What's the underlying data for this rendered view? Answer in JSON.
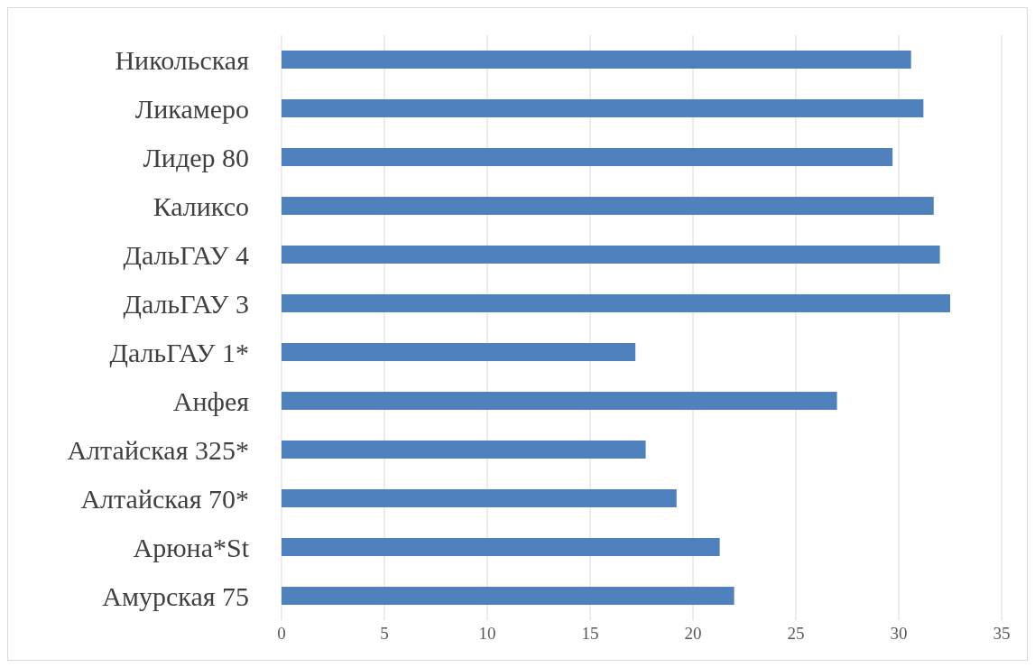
{
  "chart_data": {
    "type": "bar",
    "orientation": "horizontal",
    "categories": [
      "Никольская",
      "Ликамеро",
      "Лидер 80",
      "Каликсо",
      "ДальГАУ 4",
      "ДальГАУ 3",
      "ДальГАУ 1*",
      "Анфея",
      "Алтайская 325*",
      "Алтайская 70*",
      "Арюна*St",
      "Амурская 75"
    ],
    "values": [
      30.6,
      31.2,
      29.7,
      31.7,
      32.0,
      32.5,
      17.2,
      27.0,
      17.7,
      19.2,
      21.3,
      22.0
    ],
    "color": "#4f81bd",
    "xlim": [
      0,
      35
    ],
    "xticks": [
      0,
      5,
      10,
      15,
      20,
      25,
      30,
      35
    ],
    "grid": "x"
  }
}
